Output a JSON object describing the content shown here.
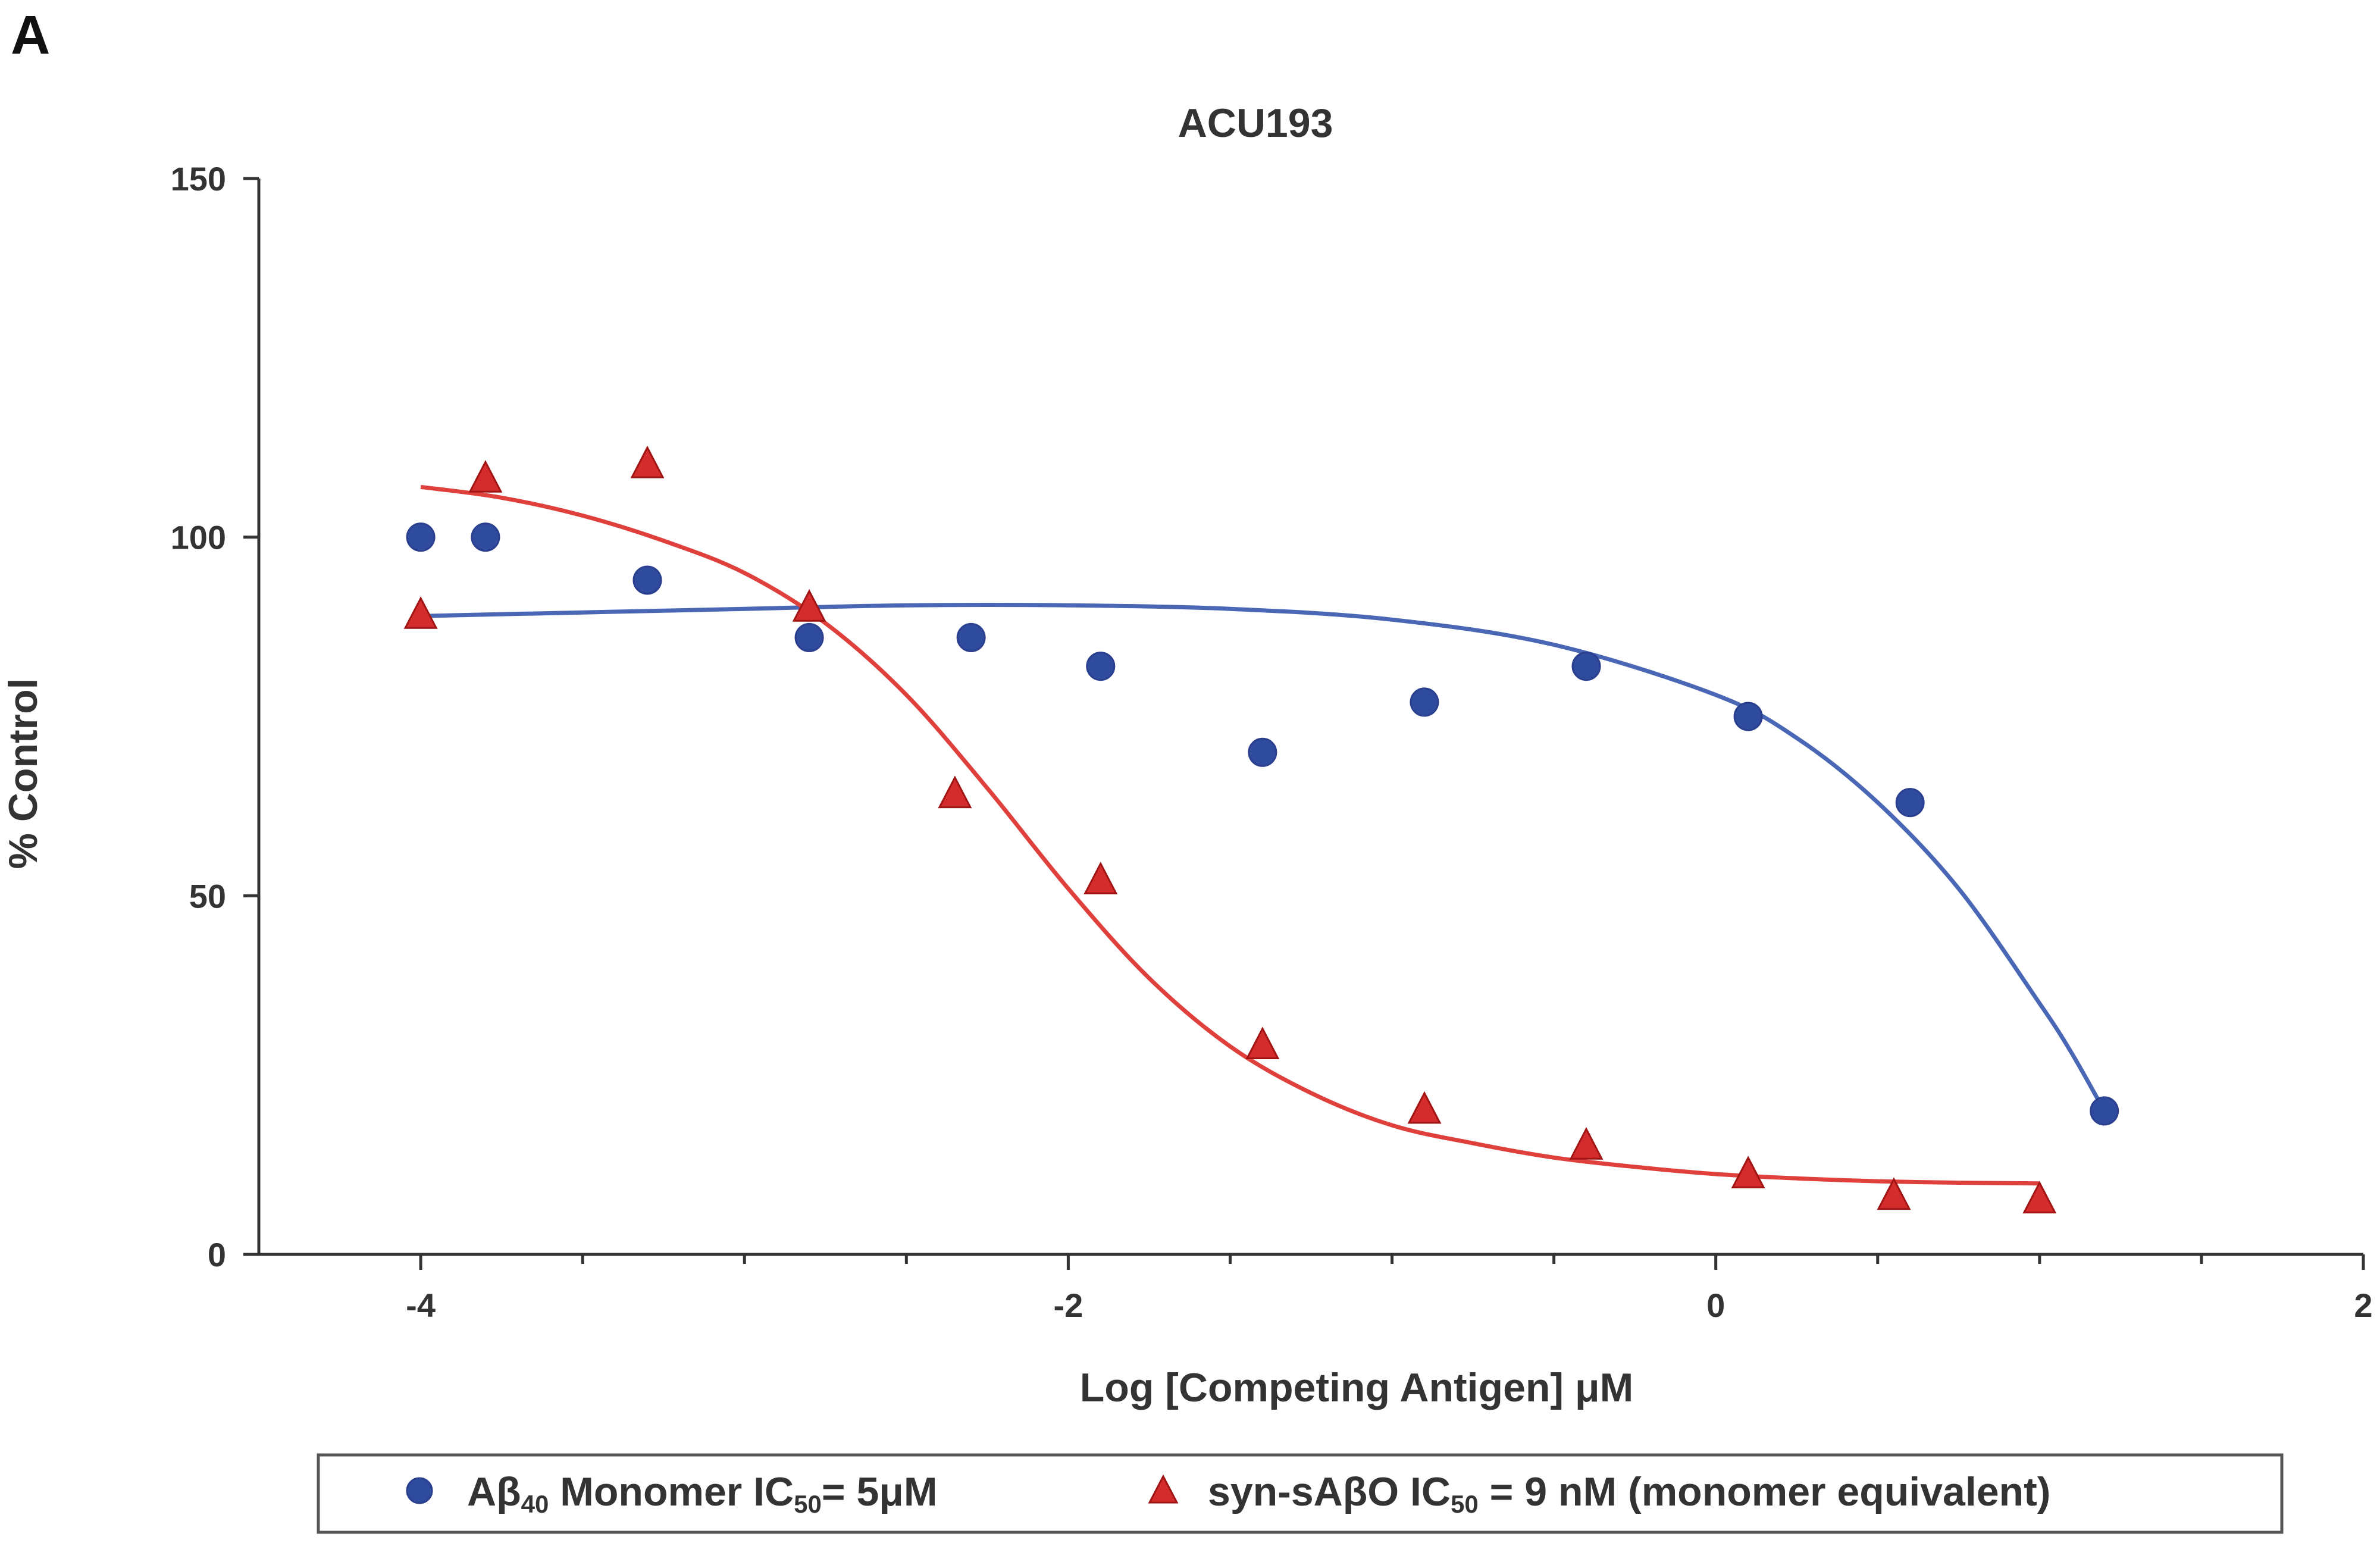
{
  "panel_label": "A",
  "chart_data": {
    "type": "scatter",
    "title": "ACU193",
    "xlabel": "Log [Competing Antigen] μM",
    "ylabel": "% Control",
    "xlim": [
      -4.5,
      2
    ],
    "ylim": [
      0,
      150
    ],
    "x_ticks": [
      -4,
      -2,
      0,
      2
    ],
    "x_minor_ticks": [
      -3.5,
      -3,
      -2.5,
      -1.5,
      -1,
      -0.5,
      0.5,
      1,
      1.5
    ],
    "y_ticks": [
      0,
      50,
      100,
      150
    ],
    "legend_position": "bottom",
    "series": [
      {
        "name": "Aβ40 Monomer IC50= 5μM",
        "legend": {
          "prefix": "Aβ",
          "sub1": "40",
          "middle": " Monomer IC",
          "sub2": "50",
          "suffix": "= 5μM"
        },
        "marker": "circle",
        "color": "#2f4b9e",
        "curve_color": "#4a67b5",
        "x": [
          -4.0,
          -3.8,
          -3.3,
          -2.8,
          -2.3,
          -1.9,
          -1.4,
          -0.9,
          -0.4,
          0.1,
          0.6,
          1.2
        ],
        "y": [
          100,
          100,
          94,
          86,
          86,
          82,
          70,
          77,
          82,
          75,
          63,
          20
        ],
        "fit": {
          "x": [
            -4.0,
            -3.5,
            -3.0,
            -2.5,
            -2.0,
            -1.5,
            -1.0,
            -0.5,
            0.0,
            0.25,
            0.5,
            0.75,
            1.0,
            1.1,
            1.2
          ],
          "y": [
            89,
            89.5,
            90,
            90.5,
            90.5,
            90,
            88.5,
            85,
            78,
            72,
            63,
            51,
            35,
            28,
            20
          ]
        }
      },
      {
        "name": "syn-sAβO IC50 = 9 nM (monomer equivalent)",
        "legend": {
          "prefix": "syn-sAβO IC",
          "sub1": "50",
          "middle": " = 9 nM (monomer equivalent)",
          "sub2": "",
          "suffix": ""
        },
        "marker": "triangle",
        "color": "#d42c2c",
        "curve_color": "#e0403c",
        "x": [
          -4.0,
          -3.8,
          -3.3,
          -2.8,
          -2.35,
          -1.9,
          -1.4,
          -0.9,
          -0.4,
          0.1,
          0.55,
          1.0
        ],
        "y": [
          89,
          108,
          110,
          90,
          64,
          52,
          29,
          20,
          15,
          11,
          8,
          7.5
        ],
        "fit": {
          "x": [
            -4.0,
            -3.75,
            -3.5,
            -3.25,
            -3.0,
            -2.75,
            -2.5,
            -2.25,
            -2.0,
            -1.75,
            -1.5,
            -1.25,
            -1.0,
            -0.75,
            -0.5,
            -0.25,
            0.0,
            0.25,
            0.5,
            0.75,
            1.0
          ],
          "y": [
            107,
            105.5,
            103,
            99.5,
            95,
            88,
            78,
            65,
            51,
            38.5,
            29,
            22.5,
            18,
            15.5,
            13.5,
            12.2,
            11.2,
            10.6,
            10.2,
            10.0,
            9.9
          ]
        }
      }
    ]
  }
}
